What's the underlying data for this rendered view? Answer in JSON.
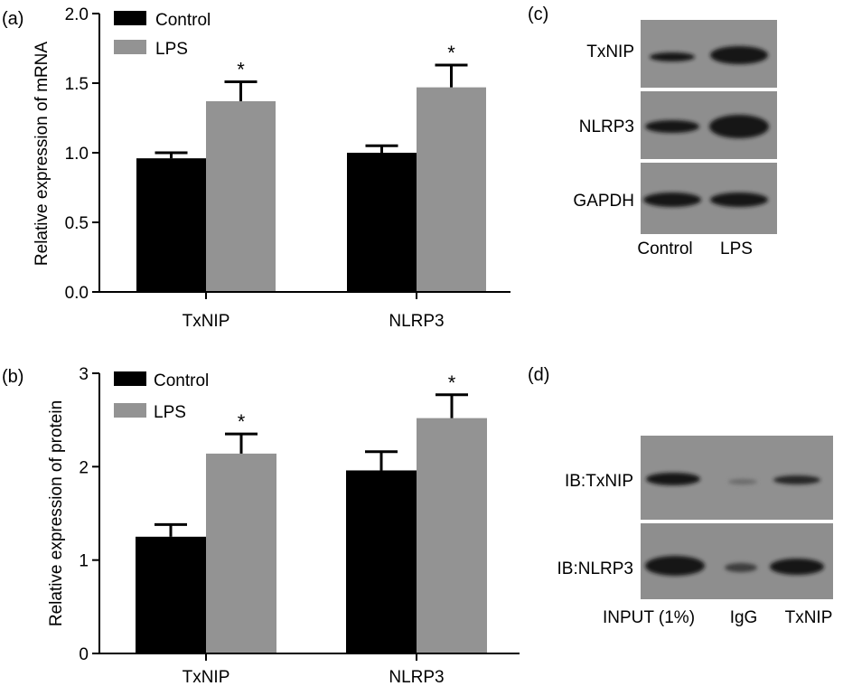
{
  "panels": {
    "a": "(a)",
    "b": "(b)",
    "c": "(c)",
    "d": "(d)"
  },
  "colors": {
    "control": "#000000",
    "lps": "#939393",
    "blot_background": "#8f8f8f",
    "band": "#161616"
  },
  "chart_data": [
    {
      "type": "bar",
      "panel": "a",
      "title": "",
      "xlabel": "",
      "ylabel": "Relative expression of mRNA",
      "categories": [
        "TxNIP",
        "NLRP3"
      ],
      "series": [
        {
          "name": "Control",
          "values": [
            0.96,
            1.0
          ],
          "errors": [
            0.04,
            0.05
          ]
        },
        {
          "name": "LPS",
          "values": [
            1.37,
            1.47
          ],
          "errors": [
            0.14,
            0.16
          ]
        }
      ],
      "ylim": [
        0,
        2.0
      ],
      "yticks": [
        "0.0",
        "0.5",
        "1.0",
        "1.5",
        "2.0"
      ],
      "significance": [
        "*",
        "*"
      ],
      "legend": "top-left",
      "grid": false
    },
    {
      "type": "bar",
      "panel": "b",
      "title": "",
      "xlabel": "",
      "ylabel": "Relative expression of protein",
      "categories": [
        "TxNIP",
        "NLRP3"
      ],
      "series": [
        {
          "name": "Control",
          "values": [
            1.25,
            1.96
          ],
          "errors": [
            0.13,
            0.2
          ]
        },
        {
          "name": "LPS",
          "values": [
            2.14,
            2.52
          ],
          "errors": [
            0.21,
            0.25
          ]
        }
      ],
      "ylim": [
        0,
        3
      ],
      "yticks": [
        "0",
        "1",
        "2",
        "3"
      ],
      "significance": [
        "*",
        "*"
      ],
      "legend": "top-left",
      "grid": false
    }
  ],
  "blot_c": {
    "rows": [
      "TxNIP",
      "NLRP3",
      "GAPDH"
    ],
    "lanes": [
      "Control",
      "LPS"
    ]
  },
  "blot_d": {
    "rows": [
      "IB:TxNIP",
      "IB:NLRP3"
    ],
    "lanes": [
      "INPUT (1%)",
      "IgG",
      "TxNIP"
    ]
  }
}
